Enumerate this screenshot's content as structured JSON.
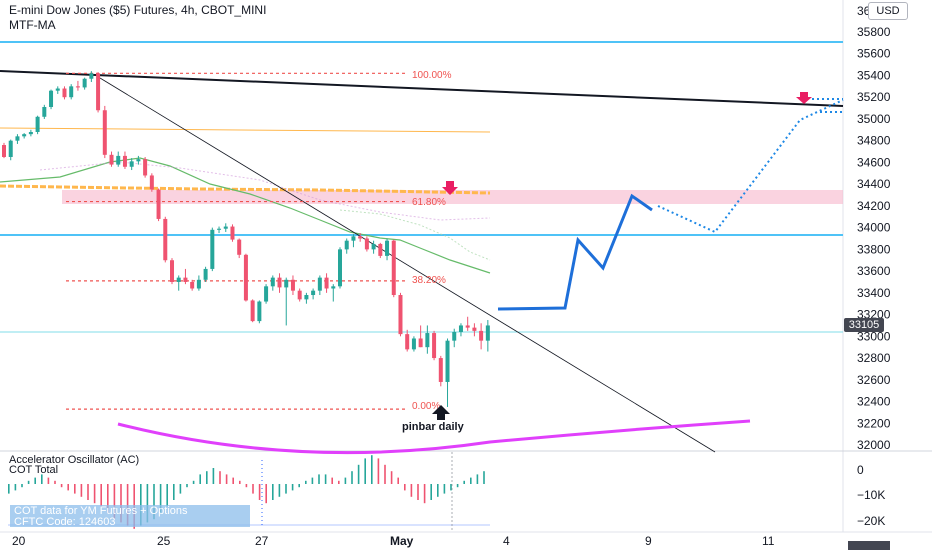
{
  "header": {
    "title": "E-mini Dow Jones ($5) Futures, 4h, CBOT_MINI",
    "indicator": "MTF-MA",
    "currency_button": "USD"
  },
  "price_axis": {
    "ticks": [
      "35800",
      "35600",
      "35400",
      "35200",
      "35000",
      "34800",
      "34600",
      "34400",
      "34200",
      "34000",
      "33800",
      "33600",
      "33400",
      "33200",
      "33000",
      "32800",
      "32600",
      "32400",
      "32200",
      "32000"
    ],
    "current_price": "33105",
    "top_cut_label": "36"
  },
  "time_axis": {
    "labels": [
      "20",
      "25",
      "27",
      "May",
      "4",
      "9",
      "11"
    ]
  },
  "fibonacci": {
    "levels": [
      {
        "label": "100.00%",
        "price": 35420
      },
      {
        "label": "61.80%",
        "price": 34240
      },
      {
        "label": "38.20%",
        "price": 33510
      },
      {
        "label": "0.00%",
        "price": 32330
      }
    ]
  },
  "annotations": {
    "pinbar": "pinbar daily"
  },
  "oscillator": {
    "title": "Accelerator Oscillator (AC)",
    "subtitle": "COT Total",
    "ticks": [
      "0",
      "−10K",
      "−20K"
    ],
    "cot_line1": "COT data for YM Futures + Options",
    "cot_line2": "CFTC Code: 124603"
  },
  "chart_data": {
    "type": "candlestick",
    "title": "E-mini Dow Jones ($5) Futures, 4h, CBOT_MINI",
    "ylim": [
      31950,
      36050
    ],
    "candles": [
      [
        34760,
        34780,
        34640,
        34650
      ],
      [
        34650,
        34810,
        34620,
        34800
      ],
      [
        34800,
        34860,
        34770,
        34840
      ],
      [
        34840,
        34870,
        34820,
        34860
      ],
      [
        34860,
        34900,
        34840,
        34880
      ],
      [
        34880,
        35030,
        34860,
        35020
      ],
      [
        35020,
        35130,
        35000,
        35110
      ],
      [
        35110,
        35270,
        35090,
        35260
      ],
      [
        35260,
        35300,
        35230,
        35280
      ],
      [
        35280,
        35300,
        35180,
        35200
      ],
      [
        35200,
        35320,
        35180,
        35300
      ],
      [
        35300,
        35350,
        35260,
        35290
      ],
      [
        35290,
        35380,
        35270,
        35370
      ],
      [
        35370,
        35440,
        35340,
        35420
      ],
      [
        35420,
        35430,
        35060,
        35080
      ],
      [
        35080,
        35120,
        34640,
        34670
      ],
      [
        34670,
        34700,
        34560,
        34580
      ],
      [
        34580,
        34700,
        34560,
        34660
      ],
      [
        34660,
        34700,
        34540,
        34560
      ],
      [
        34560,
        34640,
        34530,
        34610
      ],
      [
        34610,
        34660,
        34580,
        34630
      ],
      [
        34630,
        34650,
        34460,
        34480
      ],
      [
        34480,
        34500,
        34330,
        34350
      ],
      [
        34350,
        34360,
        34060,
        34080
      ],
      [
        34080,
        34100,
        33680,
        33700
      ],
      [
        33700,
        33720,
        33480,
        33500
      ],
      [
        33500,
        33560,
        33420,
        33540
      ],
      [
        33540,
        33620,
        33480,
        33500
      ],
      [
        33500,
        33520,
        33420,
        33440
      ],
      [
        33440,
        33560,
        33420,
        33520
      ],
      [
        33520,
        33640,
        33500,
        33620
      ],
      [
        33620,
        34000,
        33600,
        33980
      ],
      [
        33980,
        34010,
        33950,
        33990
      ],
      [
        33990,
        34040,
        33960,
        34010
      ],
      [
        34010,
        34030,
        33870,
        33890
      ],
      [
        33890,
        33900,
        33720,
        33750
      ],
      [
        33750,
        33760,
        33320,
        33330
      ],
      [
        33330,
        33340,
        33130,
        33140
      ],
      [
        33140,
        33330,
        33120,
        33320
      ],
      [
        33320,
        33480,
        33300,
        33460
      ],
      [
        33460,
        33560,
        33420,
        33540
      ],
      [
        33540,
        33580,
        33400,
        33450
      ],
      [
        33450,
        33540,
        33100,
        33520
      ],
      [
        33520,
        33560,
        33380,
        33420
      ],
      [
        33420,
        33440,
        33320,
        33340
      ],
      [
        33340,
        33400,
        33300,
        33380
      ],
      [
        33380,
        33440,
        33340,
        33420
      ],
      [
        33420,
        33560,
        33380,
        33540
      ],
      [
        33540,
        33580,
        33400,
        33440
      ],
      [
        33440,
        33480,
        33320,
        33460
      ],
      [
        33460,
        33820,
        33440,
        33800
      ],
      [
        33800,
        33900,
        33760,
        33880
      ],
      [
        33880,
        33940,
        33820,
        33920
      ],
      [
        33920,
        33950,
        33870,
        33900
      ],
      [
        33900,
        33920,
        33780,
        33800
      ],
      [
        33800,
        33880,
        33760,
        33850
      ],
      [
        33850,
        33860,
        33720,
        33740
      ],
      [
        33740,
        33900,
        33700,
        33880
      ],
      [
        33880,
        33890,
        33360,
        33380
      ],
      [
        33380,
        33400,
        33000,
        33020
      ],
      [
        33020,
        33060,
        32860,
        32880
      ],
      [
        32880,
        33000,
        32860,
        32980
      ],
      [
        32980,
        33100,
        32900,
        32900
      ],
      [
        32900,
        33100,
        32840,
        33030
      ],
      [
        33030,
        33050,
        32780,
        32800
      ],
      [
        32800,
        32820,
        32540,
        32580
      ],
      [
        32580,
        32980,
        32350,
        32960
      ],
      [
        32960,
        33070,
        32900,
        33040
      ],
      [
        33040,
        33120,
        33000,
        33100
      ],
      [
        33100,
        33180,
        33050,
        33080
      ],
      [
        33080,
        33120,
        33000,
        33050
      ],
      [
        33050,
        33120,
        32880,
        32960
      ],
      [
        32960,
        33150,
        32860,
        33100
      ]
    ],
    "oscillator_histogram": [
      -3,
      -2,
      -1,
      1,
      2,
      3,
      2,
      1,
      -1,
      -2,
      -3,
      -4,
      -5,
      -6,
      -7,
      -9,
      -11,
      -12,
      -13,
      -14,
      -13,
      -12,
      -11,
      -9,
      -7,
      -5,
      -3,
      -1,
      1,
      3,
      4,
      5,
      4,
      3,
      2,
      1,
      -1,
      -3,
      -5,
      -6,
      -5,
      -4,
      -3,
      -2,
      -1,
      1,
      2,
      3,
      3,
      2,
      1,
      2,
      4,
      6,
      8,
      9,
      8,
      6,
      4,
      2,
      -2,
      -4,
      -5,
      -6,
      -5,
      -4,
      -3,
      -2,
      -1,
      1,
      2,
      3,
      4
    ]
  }
}
